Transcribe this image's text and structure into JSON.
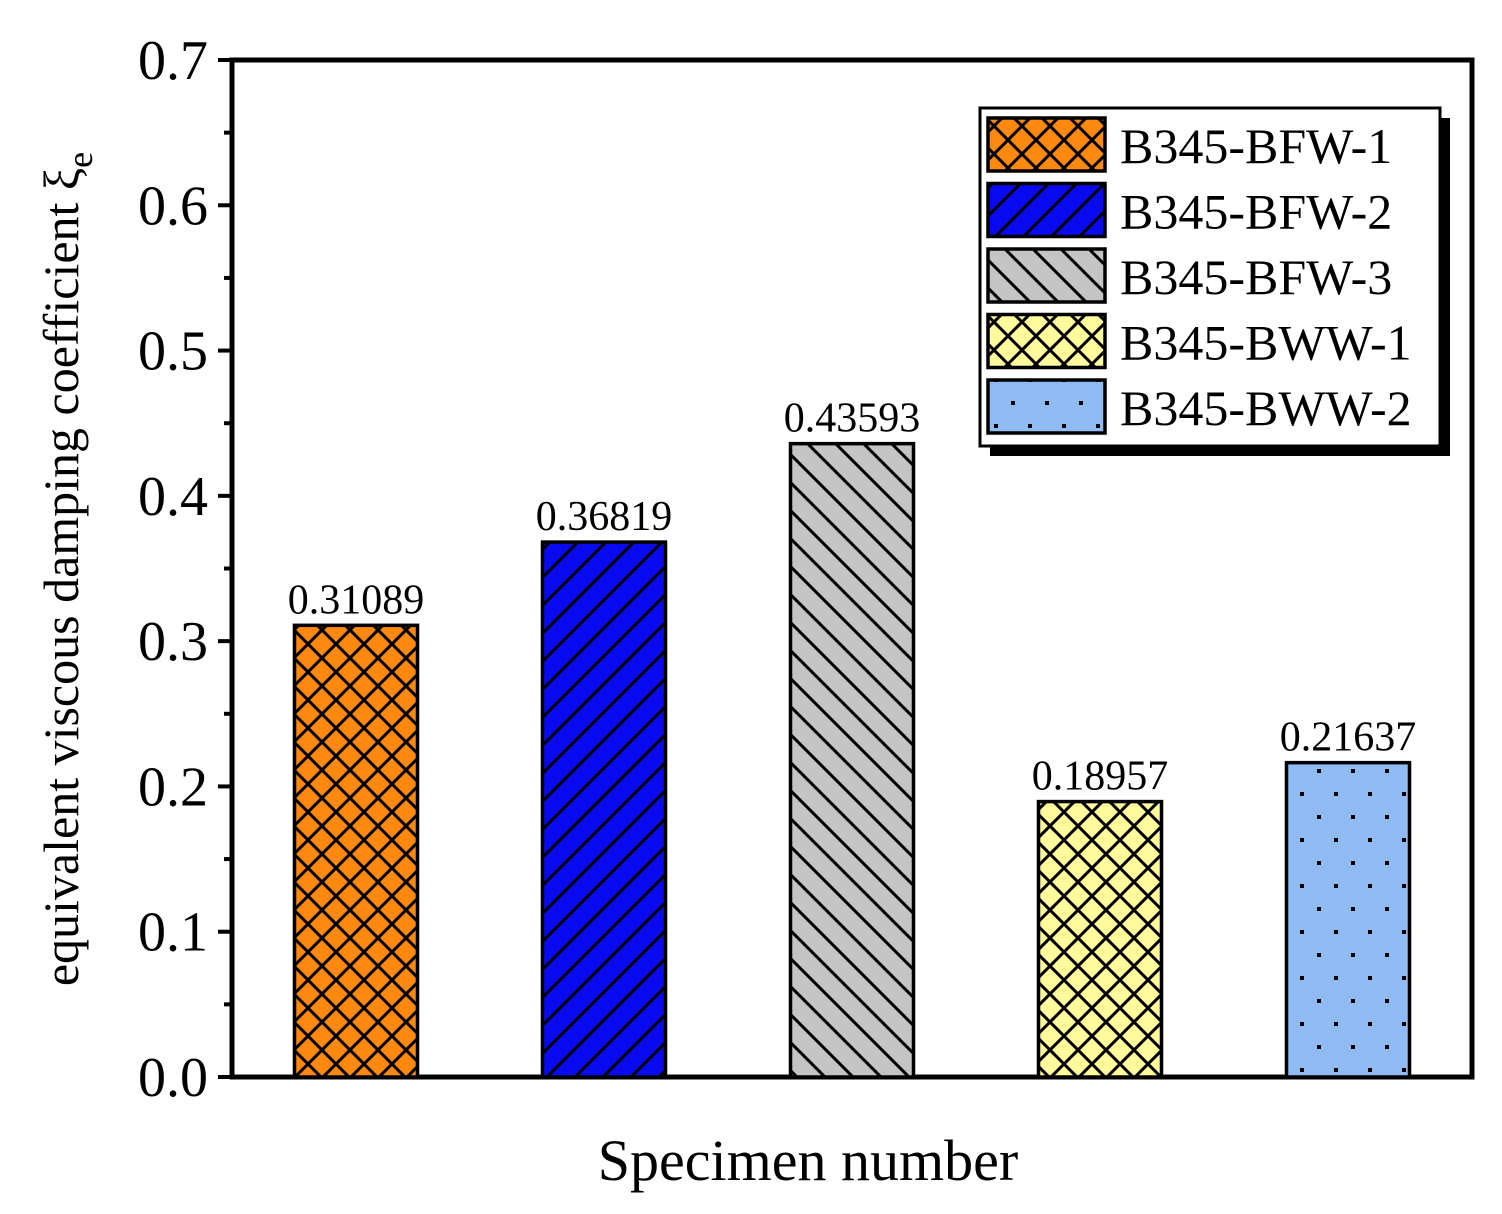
{
  "chart_data": {
    "type": "bar",
    "title": "",
    "xlabel": "Specimen number",
    "ylabel": "equivalent viscous damping coefficient ξ",
    "ylabel_subscript": "e",
    "ylim": [
      0,
      0.7
    ],
    "yticks": [
      0.0,
      0.1,
      0.2,
      0.3,
      0.4,
      0.5,
      0.6,
      0.7
    ],
    "ytick_labels": [
      "0.0",
      "0.1",
      "0.2",
      "0.3",
      "0.4",
      "0.5",
      "0.6",
      "0.7"
    ],
    "legend_position": "top-right",
    "series": [
      {
        "name": "B345-BFW-1",
        "value": 0.31089,
        "label": "0.31089",
        "color": "#FF8811",
        "pattern": "crosshatch"
      },
      {
        "name": "B345-BFW-2",
        "value": 0.36819,
        "label": "0.36819",
        "color": "#0A0AF0",
        "pattern": "forward-diagonal"
      },
      {
        "name": "B345-BFW-3",
        "value": 0.43593,
        "label": "0.43593",
        "color": "#C4C4C4",
        "pattern": "backward-diagonal"
      },
      {
        "name": "B345-BWW-1",
        "value": 0.18957,
        "label": "0.18957",
        "color": "#FFFA9B",
        "pattern": "crosshatch"
      },
      {
        "name": "B345-BWW-2",
        "value": 0.21637,
        "label": "0.21637",
        "color": "#8FBBF2",
        "pattern": "dots"
      }
    ]
  }
}
